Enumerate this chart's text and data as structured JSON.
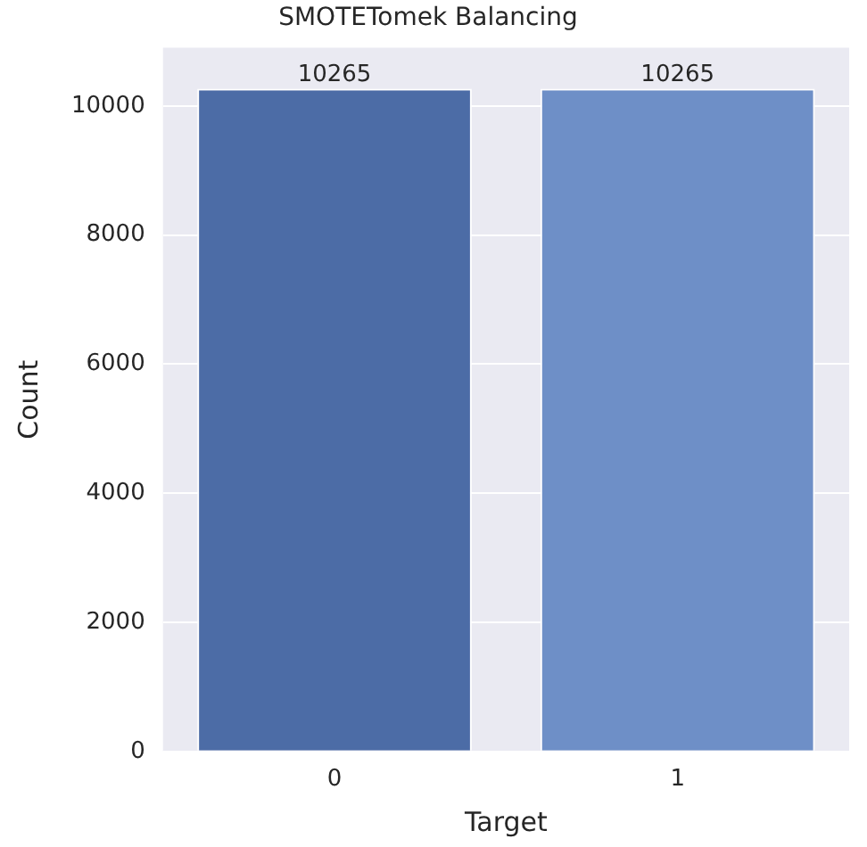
{
  "chart_data": {
    "type": "bar",
    "title": "SMOTETomek Balancing",
    "xlabel": "Target",
    "ylabel": "Count",
    "categories": [
      "0",
      "1"
    ],
    "values": [
      10265,
      10265
    ],
    "colors": [
      "#4c6ca6",
      "#6e8fc7"
    ],
    "ylim": [
      0,
      10900
    ],
    "yticks": [
      0,
      2000,
      4000,
      6000,
      8000,
      10000
    ],
    "grid": "y",
    "data_labels": true,
    "legend": false
  }
}
